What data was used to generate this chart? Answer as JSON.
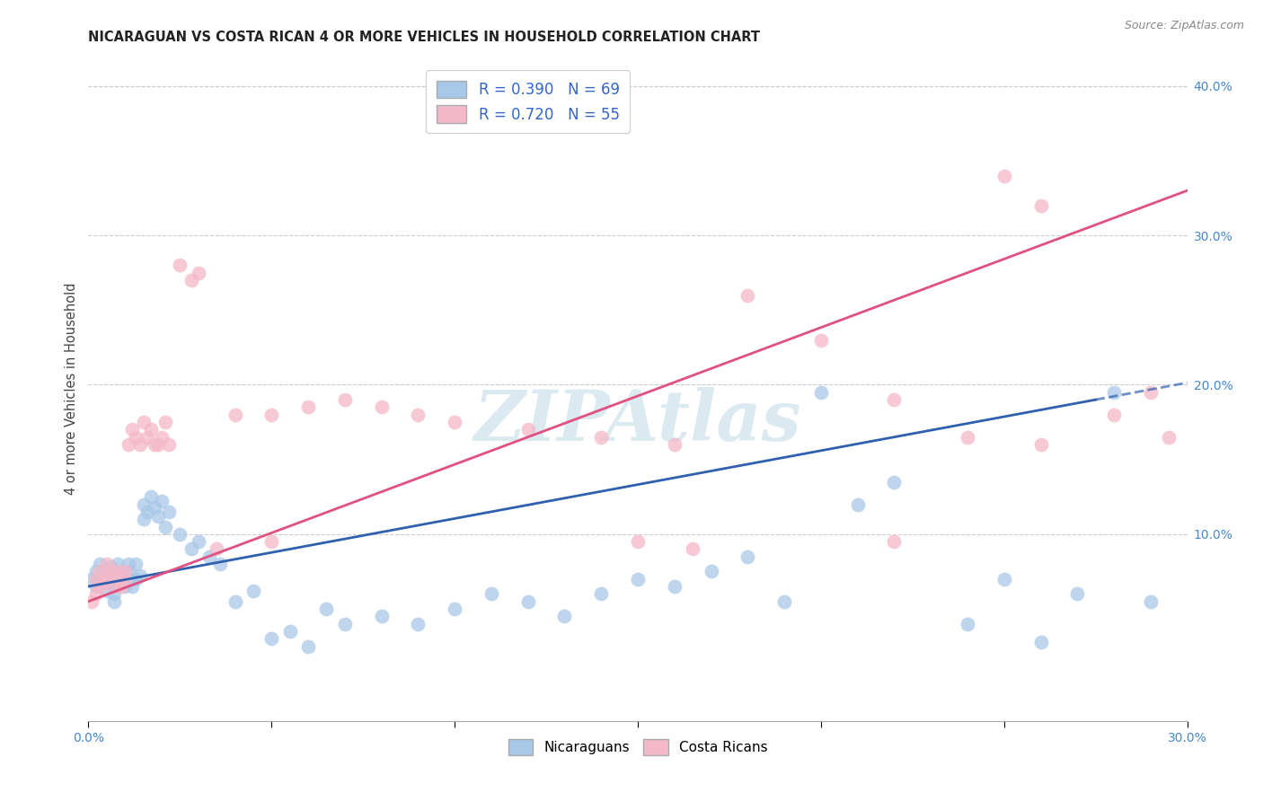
{
  "title": "NICARAGUAN VS COSTA RICAN 4 OR MORE VEHICLES IN HOUSEHOLD CORRELATION CHART",
  "source": "Source: ZipAtlas.com",
  "ylabel": "4 or more Vehicles in Household",
  "xlim": [
    0.0,
    0.3
  ],
  "ylim": [
    -0.025,
    0.42
  ],
  "yticks_right": [
    0.1,
    0.2,
    0.3,
    0.4
  ],
  "blue_color": "#a8c8e8",
  "pink_color": "#f4b8c8",
  "blue_line_color": "#3060b0",
  "pink_line_color": "#e05080",
  "legend_R1": "R = 0.390",
  "legend_N1": "N = 69",
  "legend_R2": "R = 0.720",
  "legend_N2": "N = 55",
  "watermark": "ZIPAtlas",
  "nicaraguan_x": [
    0.001,
    0.002,
    0.002,
    0.003,
    0.003,
    0.004,
    0.004,
    0.005,
    0.005,
    0.006,
    0.006,
    0.007,
    0.007,
    0.007,
    0.008,
    0.008,
    0.009,
    0.009,
    0.01,
    0.01,
    0.011,
    0.011,
    0.012,
    0.012,
    0.013,
    0.013,
    0.014,
    0.015,
    0.015,
    0.016,
    0.017,
    0.018,
    0.019,
    0.02,
    0.021,
    0.022,
    0.025,
    0.028,
    0.03,
    0.033,
    0.036,
    0.04,
    0.045,
    0.05,
    0.055,
    0.06,
    0.065,
    0.07,
    0.08,
    0.09,
    0.1,
    0.11,
    0.12,
    0.13,
    0.14,
    0.15,
    0.16,
    0.17,
    0.18,
    0.19,
    0.2,
    0.21,
    0.22,
    0.24,
    0.25,
    0.26,
    0.27,
    0.28,
    0.29
  ],
  "nicaraguan_y": [
    0.07,
    0.075,
    0.065,
    0.08,
    0.07,
    0.068,
    0.072,
    0.075,
    0.062,
    0.07,
    0.078,
    0.065,
    0.06,
    0.055,
    0.072,
    0.08,
    0.068,
    0.075,
    0.07,
    0.065,
    0.075,
    0.08,
    0.07,
    0.065,
    0.07,
    0.08,
    0.072,
    0.11,
    0.12,
    0.115,
    0.125,
    0.118,
    0.112,
    0.122,
    0.105,
    0.115,
    0.1,
    0.09,
    0.095,
    0.085,
    0.08,
    0.055,
    0.062,
    0.03,
    0.035,
    0.025,
    0.05,
    0.04,
    0.045,
    0.04,
    0.05,
    0.06,
    0.055,
    0.045,
    0.06,
    0.07,
    0.065,
    0.075,
    0.085,
    0.055,
    0.195,
    0.12,
    0.135,
    0.04,
    0.07,
    0.028,
    0.06,
    0.195,
    0.055
  ],
  "costarican_x": [
    0.001,
    0.002,
    0.002,
    0.003,
    0.003,
    0.004,
    0.005,
    0.005,
    0.006,
    0.007,
    0.008,
    0.008,
    0.009,
    0.01,
    0.01,
    0.011,
    0.012,
    0.013,
    0.014,
    0.015,
    0.016,
    0.017,
    0.018,
    0.019,
    0.02,
    0.021,
    0.022,
    0.025,
    0.028,
    0.03,
    0.035,
    0.04,
    0.05,
    0.06,
    0.07,
    0.08,
    0.09,
    0.1,
    0.12,
    0.14,
    0.16,
    0.18,
    0.2,
    0.22,
    0.24,
    0.26,
    0.28,
    0.29,
    0.295,
    0.05,
    0.15,
    0.165,
    0.22,
    0.25,
    0.26
  ],
  "costarican_y": [
    0.055,
    0.06,
    0.07,
    0.065,
    0.075,
    0.068,
    0.072,
    0.08,
    0.075,
    0.065,
    0.07,
    0.075,
    0.065,
    0.07,
    0.075,
    0.16,
    0.17,
    0.165,
    0.16,
    0.175,
    0.165,
    0.17,
    0.16,
    0.16,
    0.165,
    0.175,
    0.16,
    0.28,
    0.27,
    0.275,
    0.09,
    0.18,
    0.18,
    0.185,
    0.19,
    0.185,
    0.18,
    0.175,
    0.17,
    0.165,
    0.16,
    0.26,
    0.23,
    0.19,
    0.165,
    0.16,
    0.18,
    0.195,
    0.165,
    0.095,
    0.095,
    0.09,
    0.095,
    0.34,
    0.32
  ],
  "blue_trend_x0": 0.0,
  "blue_trend_y0": 0.065,
  "blue_trend_x1": 0.275,
  "blue_trend_y1": 0.19,
  "pink_trend_x0": 0.0,
  "pink_trend_y0": 0.055,
  "pink_trend_x1": 0.3,
  "pink_trend_y1": 0.33
}
